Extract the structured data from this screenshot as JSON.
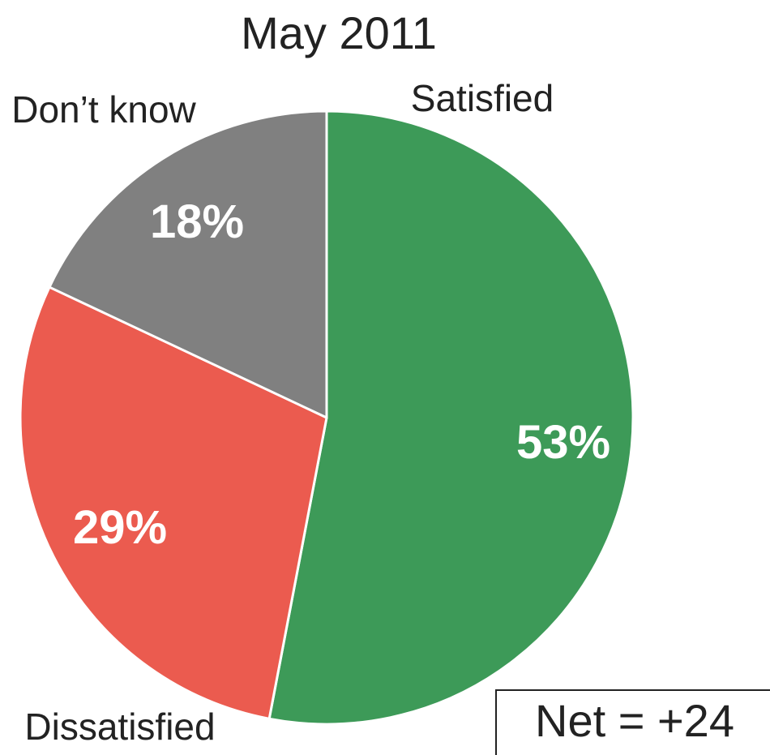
{
  "chart_data": {
    "type": "pie",
    "title": "May 2011",
    "slices": [
      {
        "label": "Satisfied",
        "value": 53,
        "value_label": "53%",
        "color": "#3d9a58"
      },
      {
        "label": "Dissatisfied",
        "value": 29,
        "value_label": "29%",
        "color": "#eb5b4f"
      },
      {
        "label": "Don’t know",
        "value": 18,
        "value_label": "18%",
        "color": "#808080"
      }
    ],
    "start": "12 o'clock",
    "direction": "clockwise",
    "annotation": "Net = +24"
  }
}
